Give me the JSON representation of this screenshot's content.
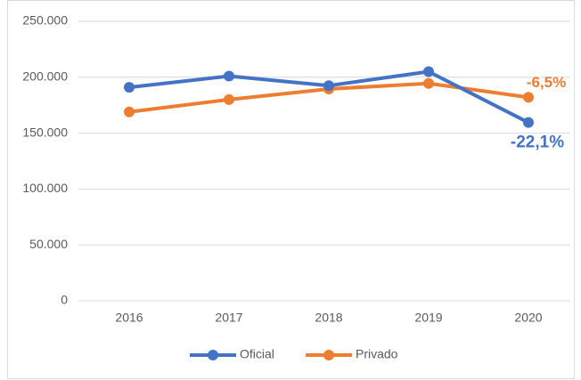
{
  "chart_data": {
    "type": "line",
    "categories": [
      "2016",
      "2017",
      "2018",
      "2019",
      "2020"
    ],
    "series": [
      {
        "name": "Oficial",
        "color": "#4472c4",
        "values": [
          191000,
          201000,
          192500,
          205000,
          159500
        ],
        "change_label": "-22,1%"
      },
      {
        "name": "Privado",
        "color": "#ed7d31",
        "values": [
          169000,
          180000,
          189500,
          194500,
          182000
        ],
        "change_label": "-6,5%"
      }
    ],
    "ylim": [
      0,
      250000
    ],
    "yticks": [
      0,
      {
        "value": 50000,
        "label": "50.000"
      },
      {
        "value": 100000,
        "label": "100.000"
      },
      {
        "value": 150000,
        "label": "150.000"
      },
      {
        "value": 200000,
        "label": "200.000"
      },
      {
        "value": 250000,
        "label": "250.000"
      }
    ],
    "grid": true,
    "legend": "bottom"
  }
}
